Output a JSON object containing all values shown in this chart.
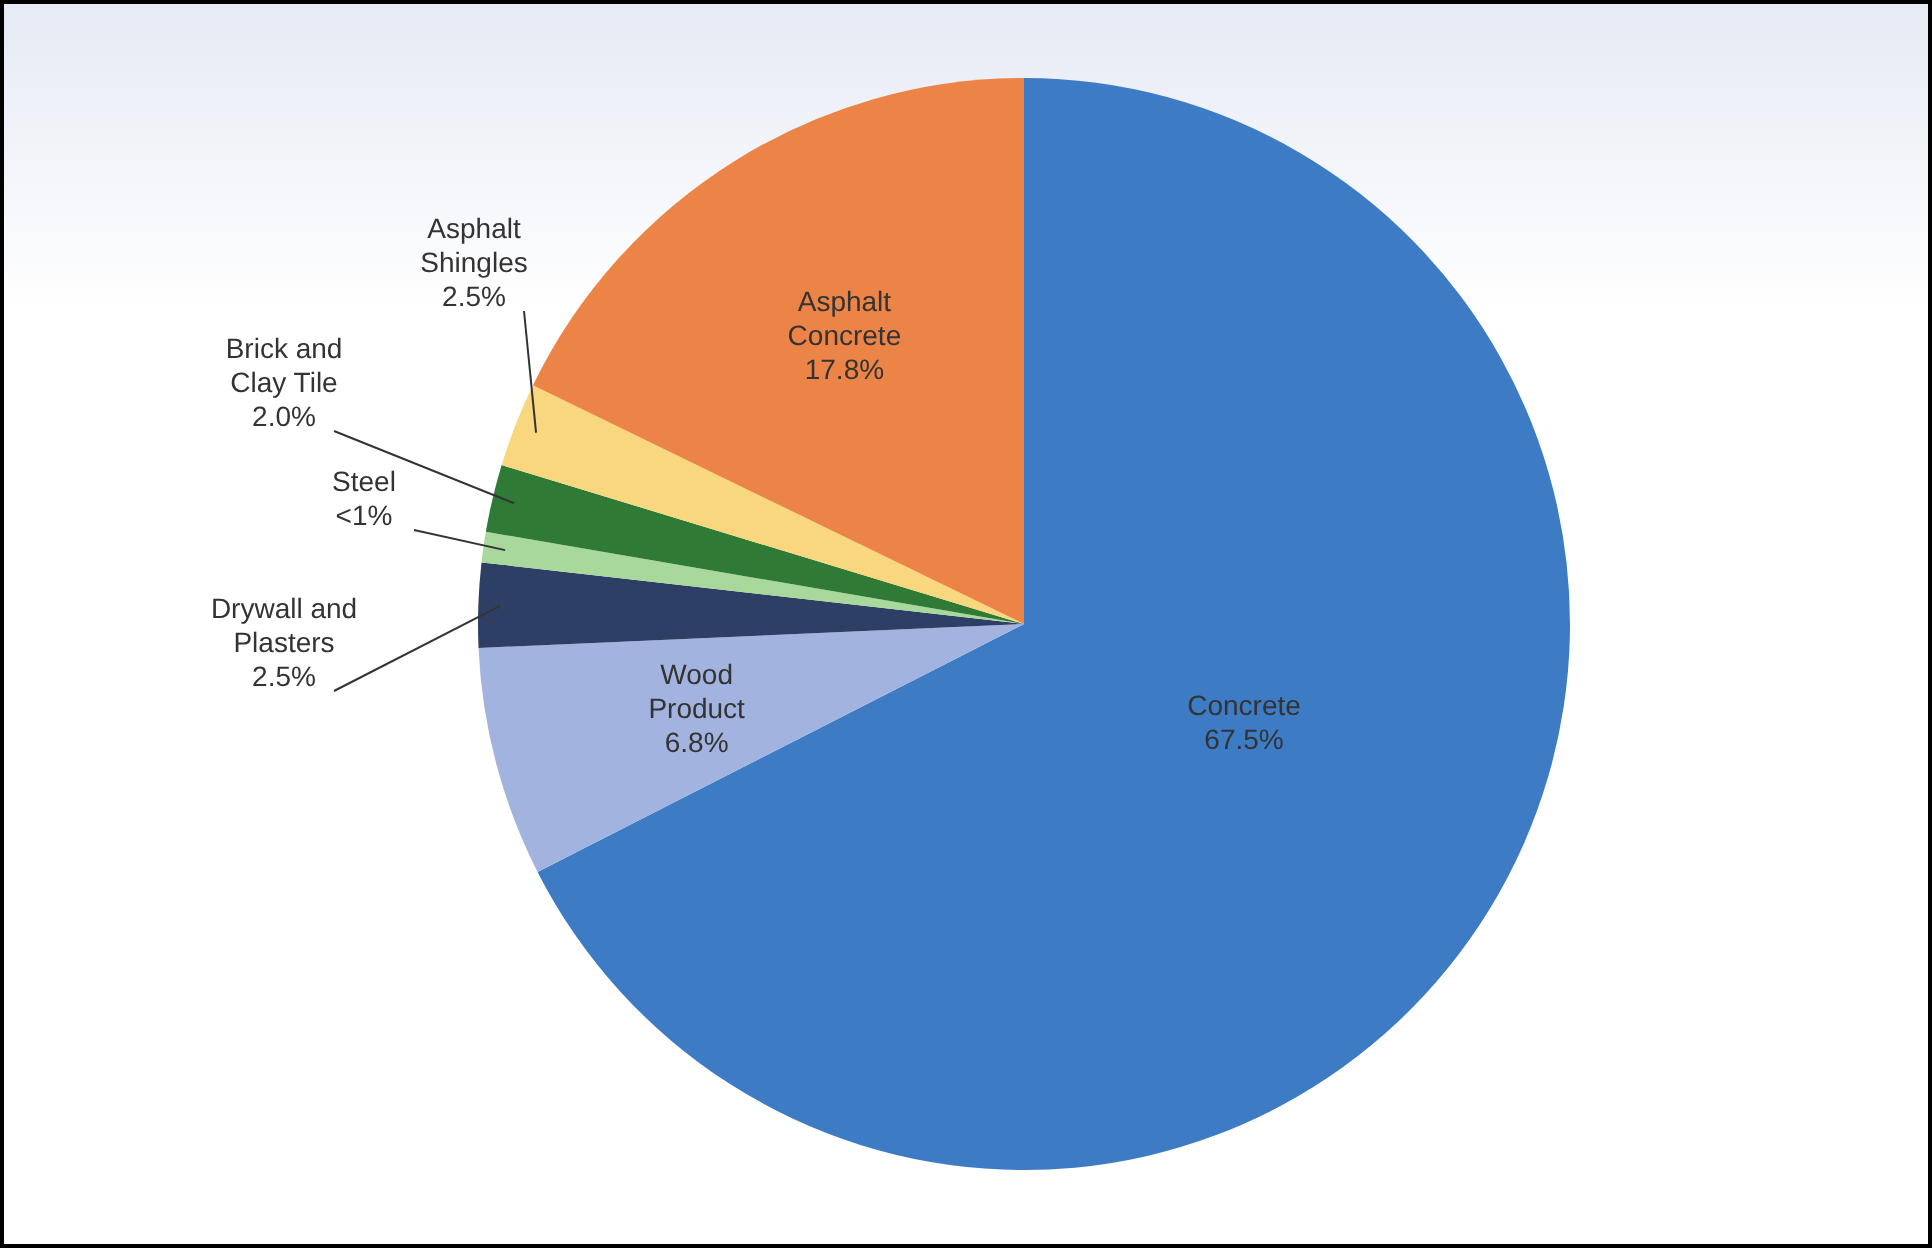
{
  "chart_data": {
    "type": "pie",
    "categories": [
      "Concrete",
      "Wood Product",
      "Drywall and Plasters",
      "Steel",
      "Brick and Clay Tile",
      "Asphalt Shingles",
      "Asphalt Concrete"
    ],
    "values": [
      67.5,
      6.8,
      2.5,
      0.9,
      2.0,
      2.5,
      17.8
    ],
    "value_labels": [
      "67.5%",
      "6.8%",
      "2.5%",
      "<1%",
      "2.0%",
      "2.5%",
      "17.8%"
    ],
    "colors": [
      "#3d7cc4",
      "#a3b3df",
      "#2e3f66",
      "#a8d89a",
      "#2f7a34",
      "#f9d77e",
      "#ec8447"
    ],
    "legend": false
  }
}
